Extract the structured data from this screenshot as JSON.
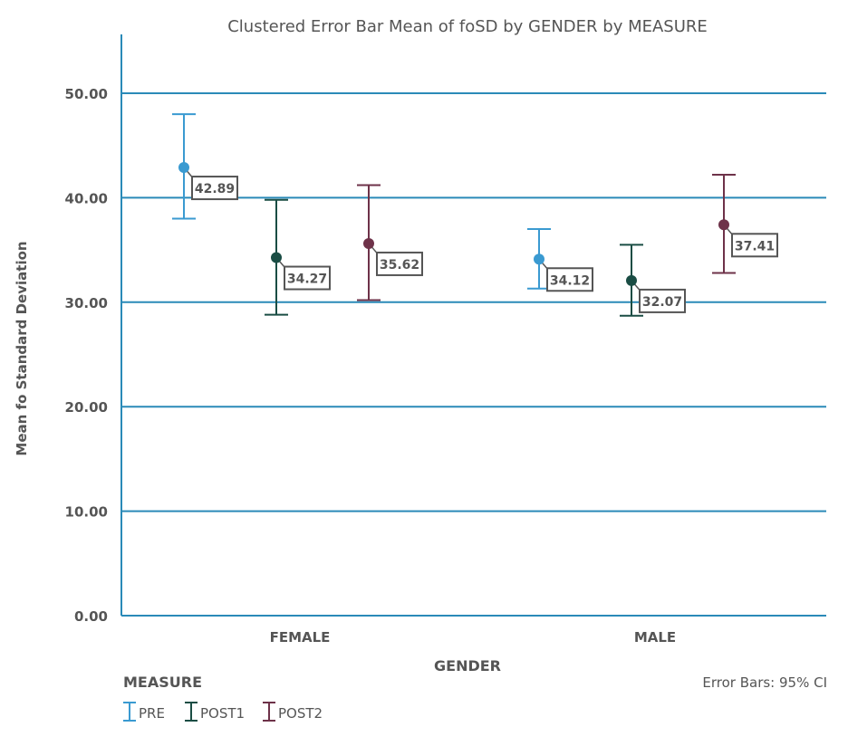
{
  "chart_data": {
    "type": "error-bar",
    "title": "Clustered Error Bar Mean of foSD by GENDER by MEASURE",
    "xlabel": "GENDER",
    "ylabel": "Mean fo Standard Deviation",
    "ylim": [
      0,
      55
    ],
    "yticks": [
      "0.00",
      "10.00",
      "20.00",
      "30.00",
      "40.00",
      "50.00"
    ],
    "categories": [
      "FEMALE",
      "MALE"
    ],
    "grid": true,
    "legend_title": "MEASURE",
    "legend_position": "bottom-left",
    "footnote": "Error Bars: 95% CI",
    "series": [
      {
        "name": "PRE",
        "color": "#3a9ad1",
        "means": [
          42.89,
          34.12
        ],
        "labels": [
          "42.89",
          "34.12"
        ],
        "lower": [
          38.0,
          31.3
        ],
        "upper": [
          48.0,
          37.0
        ]
      },
      {
        "name": "POST1",
        "color": "#1a4d44",
        "means": [
          34.27,
          32.07
        ],
        "labels": [
          "34.27",
          "32.07"
        ],
        "lower": [
          28.8,
          28.7
        ],
        "upper": [
          39.8,
          35.5
        ]
      },
      {
        "name": "POST2",
        "color": "#6e3249",
        "means": [
          35.62,
          37.41
        ],
        "labels": [
          "35.62",
          "37.41"
        ],
        "lower": [
          30.2,
          32.8
        ],
        "upper": [
          41.2,
          42.2
        ]
      }
    ]
  }
}
